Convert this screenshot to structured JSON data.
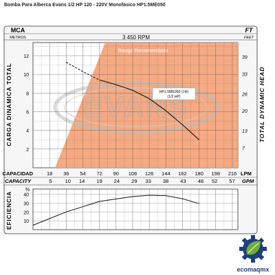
{
  "page": {
    "title": "Bomba Para Alberca Evans 1/2 HP 120 - 220V Monofásico HP1.5ME050"
  },
  "brand": {
    "watermark": "EVANS",
    "logo_text": "ecomaqmx",
    "accent_color": "#f4a57c",
    "logo_blue": "#1f3f7a",
    "logo_green": "#6fae3a"
  },
  "chart_data": [
    {
      "type": "line",
      "header": "3 450 RPM",
      "left_axis": {
        "label_top": "MCA",
        "label_sub": "METROS",
        "title": "CARGA DINAMICA TOTAL",
        "ticks": [
          2,
          4,
          6,
          8,
          10,
          12
        ],
        "range": [
          0,
          13.4
        ]
      },
      "right_axis": {
        "label_top": "FT",
        "label_sub": "FEET",
        "title": "TOTAL DYNAMIC HEAD",
        "ticks": [
          7,
          13,
          20,
          26,
          33,
          39
        ]
      },
      "x_axis_lpm": {
        "label": "CAPACIDAD",
        "unit": "LPM",
        "ticks": [
          18,
          36,
          54,
          72,
          90,
          108,
          126,
          144,
          162,
          180,
          198,
          216
        ],
        "range": [
          0,
          222
        ]
      },
      "x_axis_gpm": {
        "label": "CAPACITY",
        "unit": "GPM",
        "ticks": [
          5,
          10,
          14,
          19,
          24,
          29,
          33,
          38,
          43,
          48,
          52,
          57
        ]
      },
      "recommended_range": {
        "label": "Rango Recomendado",
        "color": "#f4a57c"
      },
      "series": [
        {
          "name": "HP1.5ME050 (1Φ)",
          "subtitle": "(1/2 HP)",
          "x_lpm": [
            72,
            90,
            108,
            126,
            144,
            162,
            180
          ],
          "head_m": [
            9.4,
            8.9,
            8.3,
            7.4,
            6.1,
            4.6,
            3.0
          ],
          "extension_x_lpm": [
            36,
            54,
            72
          ],
          "extension_head_m": [
            11.3,
            10.3,
            9.4
          ],
          "extension_style": "dashed"
        }
      ]
    },
    {
      "type": "line",
      "y_axis": {
        "title": "EFICIENCIA",
        "unit": "%",
        "ticks": [
          10,
          20,
          30,
          40
        ],
        "range": [
          0,
          46
        ]
      },
      "series": [
        {
          "name": "efficiency",
          "x_lpm": [
            0,
            36,
            72,
            108,
            126,
            144,
            162,
            180
          ],
          "values": [
            5,
            20,
            32,
            37.5,
            39,
            38.5,
            35,
            29.5
          ]
        }
      ]
    }
  ]
}
